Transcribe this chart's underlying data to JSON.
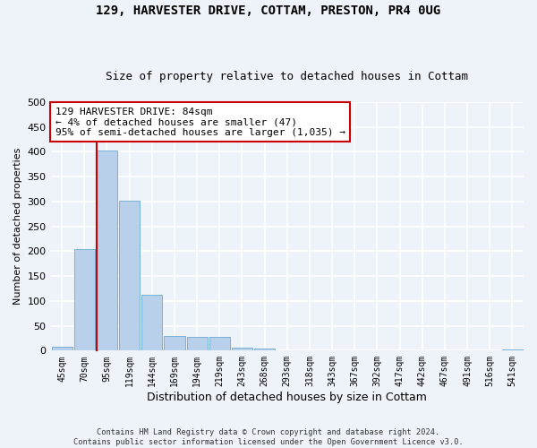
{
  "title_line1": "129, HARVESTER DRIVE, COTTAM, PRESTON, PR4 0UG",
  "title_line2": "Size of property relative to detached houses in Cottam",
  "xlabel": "Distribution of detached houses by size in Cottam",
  "ylabel": "Number of detached properties",
  "bar_labels": [
    "45sqm",
    "70sqm",
    "95sqm",
    "119sqm",
    "144sqm",
    "169sqm",
    "194sqm",
    "219sqm",
    "243sqm",
    "268sqm",
    "293sqm",
    "318sqm",
    "343sqm",
    "367sqm",
    "392sqm",
    "417sqm",
    "442sqm",
    "467sqm",
    "491sqm",
    "516sqm",
    "541sqm"
  ],
  "bar_values": [
    8,
    205,
    403,
    302,
    112,
    30,
    28,
    28,
    6,
    4,
    1,
    1,
    0,
    0,
    0,
    0,
    0,
    0,
    0,
    0,
    2
  ],
  "bar_color": "#b8d0ea",
  "bar_edge_color": "#6aaad4",
  "annotation_text": "129 HARVESTER DRIVE: 84sqm\n← 4% of detached houses are smaller (47)\n95% of semi-detached houses are larger (1,035) →",
  "annotation_box_color": "#ffffff",
  "annotation_edge_color": "#cc0000",
  "vline_color": "#cc0000",
  "background_color": "#eef2f9",
  "grid_color": "#ffffff",
  "footer_text": "Contains HM Land Registry data © Crown copyright and database right 2024.\nContains public sector information licensed under the Open Government Licence v3.0.",
  "ylim": [
    0,
    500
  ],
  "title_fontsize": 10,
  "subtitle_fontsize": 9,
  "xlabel_fontsize": 9,
  "ylabel_fontsize": 8
}
